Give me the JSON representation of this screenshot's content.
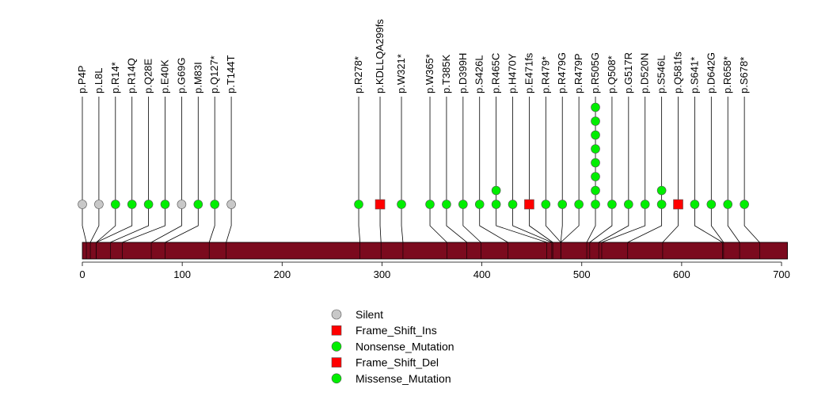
{
  "chart_data": {
    "type": "lollipop",
    "x_axis": {
      "min": 0,
      "max": 706,
      "ticks": [
        0,
        100,
        200,
        300,
        400,
        500,
        600,
        700
      ]
    },
    "protein_length": 706,
    "colors": {
      "domain_bar": "#7b0a1e",
      "Silent": "#c8c8c8",
      "Frame_Shift_Ins": "#ff0000",
      "Nonsense_Mutation": "#00ee00",
      "Frame_Shift_Del": "#ff0000",
      "Missense_Mutation": "#00ee00"
    },
    "mutations": [
      {
        "label": "p.P4P",
        "position": 4,
        "type": "Silent",
        "count": 1
      },
      {
        "label": "p.L8L",
        "position": 8,
        "type": "Silent",
        "count": 1
      },
      {
        "label": "p.R14*",
        "position": 14,
        "type": "Nonsense_Mutation",
        "count": 1
      },
      {
        "label": "p.R14Q",
        "position": 14,
        "type": "Missense_Mutation",
        "count": 1
      },
      {
        "label": "p.Q28E",
        "position": 28,
        "type": "Missense_Mutation",
        "count": 1
      },
      {
        "label": "p.E40K",
        "position": 40,
        "type": "Missense_Mutation",
        "count": 1
      },
      {
        "label": "p.G69G",
        "position": 69,
        "type": "Silent",
        "count": 1
      },
      {
        "label": "p.M83I",
        "position": 83,
        "type": "Missense_Mutation",
        "count": 1
      },
      {
        "label": "p.Q127*",
        "position": 127,
        "type": "Nonsense_Mutation",
        "count": 1
      },
      {
        "label": "p.T144T",
        "position": 144,
        "type": "Silent",
        "count": 1
      },
      {
        "label": "p.R278*",
        "position": 278,
        "type": "Nonsense_Mutation",
        "count": 1
      },
      {
        "label": "p.KDLLQA299fs",
        "position": 299,
        "type": "Frame_Shift_Ins",
        "count": 1
      },
      {
        "label": "p.W321*",
        "position": 321,
        "type": "Nonsense_Mutation",
        "count": 1
      },
      {
        "label": "p.W365*",
        "position": 365,
        "type": "Nonsense_Mutation",
        "count": 1
      },
      {
        "label": "p.T385K",
        "position": 385,
        "type": "Missense_Mutation",
        "count": 1
      },
      {
        "label": "p.D399H",
        "position": 399,
        "type": "Missense_Mutation",
        "count": 1
      },
      {
        "label": "p.S426L",
        "position": 426,
        "type": "Missense_Mutation",
        "count": 1
      },
      {
        "label": "p.R465C",
        "position": 465,
        "type": "Missense_Mutation",
        "count": 2
      },
      {
        "label": "p.H470Y",
        "position": 470,
        "type": "Missense_Mutation",
        "count": 1
      },
      {
        "label": "p.E471fs",
        "position": 471,
        "type": "Frame_Shift_Del",
        "count": 1
      },
      {
        "label": "p.R479*",
        "position": 479,
        "type": "Nonsense_Mutation",
        "count": 1
      },
      {
        "label": "p.R479G",
        "position": 479,
        "type": "Missense_Mutation",
        "count": 1
      },
      {
        "label": "p.R479P",
        "position": 479,
        "type": "Missense_Mutation",
        "count": 1
      },
      {
        "label": "p.R505G",
        "position": 505,
        "type": "Missense_Mutation",
        "count": 8
      },
      {
        "label": "p.Q508*",
        "position": 508,
        "type": "Nonsense_Mutation",
        "count": 1
      },
      {
        "label": "p.G517R",
        "position": 517,
        "type": "Missense_Mutation",
        "count": 1
      },
      {
        "label": "p.D520N",
        "position": 520,
        "type": "Missense_Mutation",
        "count": 1
      },
      {
        "label": "p.S546L",
        "position": 546,
        "type": "Missense_Mutation",
        "count": 2
      },
      {
        "label": "p.Q581fs",
        "position": 581,
        "type": "Frame_Shift_Del",
        "count": 1
      },
      {
        "label": "p.S641*",
        "position": 641,
        "type": "Nonsense_Mutation",
        "count": 1
      },
      {
        "label": "p.D642G",
        "position": 642,
        "type": "Missense_Mutation",
        "count": 1
      },
      {
        "label": "p.R658*",
        "position": 658,
        "type": "Nonsense_Mutation",
        "count": 1
      },
      {
        "label": "p.S678*",
        "position": 678,
        "type": "Nonsense_Mutation",
        "count": 1
      }
    ],
    "legend": [
      {
        "label": "Silent",
        "shape": "circle",
        "type": "Silent"
      },
      {
        "label": "Frame_Shift_Ins",
        "shape": "square",
        "type": "Frame_Shift_Ins"
      },
      {
        "label": "Nonsense_Mutation",
        "shape": "circle",
        "type": "Nonsense_Mutation"
      },
      {
        "label": "Frame_Shift_Del",
        "shape": "square",
        "type": "Frame_Shift_Del"
      },
      {
        "label": "Missense_Mutation",
        "shape": "circle",
        "type": "Missense_Mutation"
      }
    ]
  }
}
